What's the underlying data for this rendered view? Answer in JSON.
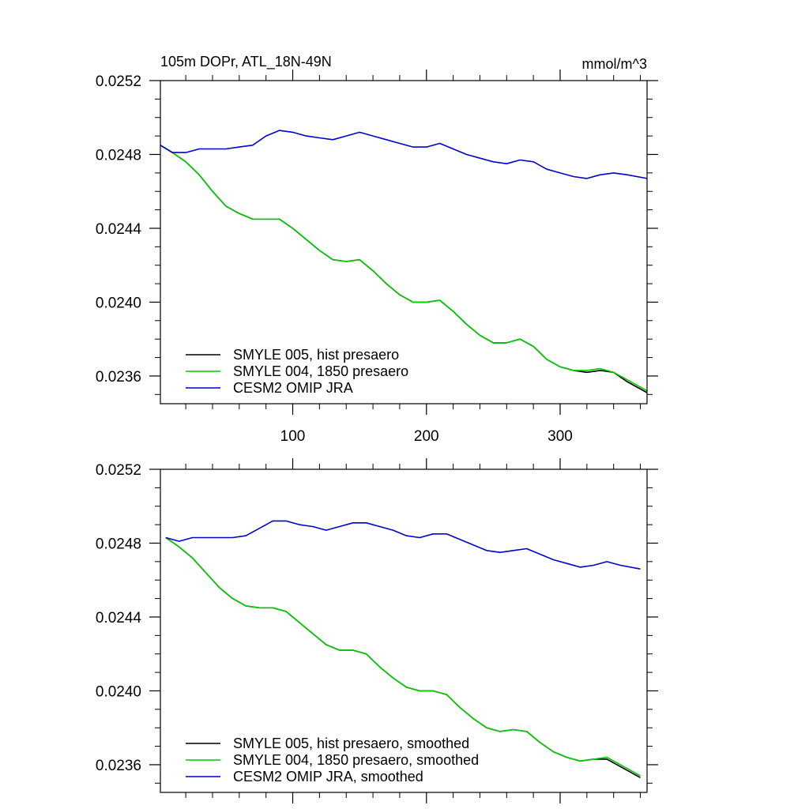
{
  "chart_data": [
    {
      "type": "line",
      "title": "105m DOPr, ATL_18N-49N",
      "units": "mmol/m^3",
      "xlim": [
        1,
        365
      ],
      "ylim": [
        0.02345,
        0.0252
      ],
      "x_ticks": [
        100,
        200,
        300
      ],
      "x_tick_labels": [
        "100",
        "200",
        "300"
      ],
      "y_ticks": [
        0.0236,
        0.024,
        0.0244,
        0.0248,
        0.0252
      ],
      "y_tick_labels": [
        "0.0236",
        "0.0240",
        "0.0244",
        "0.0248",
        "0.0252"
      ],
      "legend_position": "bottom-left",
      "series": [
        {
          "name": "SMYLE 005, hist presaero",
          "color": "#000000",
          "x": [
            1,
            10,
            20,
            30,
            40,
            50,
            60,
            70,
            80,
            90,
            100,
            110,
            120,
            130,
            140,
            150,
            160,
            170,
            180,
            190,
            200,
            210,
            220,
            230,
            240,
            250,
            260,
            270,
            280,
            290,
            300,
            310,
            320,
            330,
            340,
            350,
            365
          ],
          "y": [
            0.02485,
            0.02481,
            0.02476,
            0.02469,
            0.0246,
            0.02452,
            0.02448,
            0.02445,
            0.02445,
            0.02445,
            0.0244,
            0.02434,
            0.02428,
            0.02423,
            0.02422,
            0.02423,
            0.02417,
            0.0241,
            0.02404,
            0.024,
            0.024,
            0.02401,
            0.02395,
            0.02388,
            0.02382,
            0.02378,
            0.02378,
            0.0238,
            0.02376,
            0.02369,
            0.02365,
            0.02363,
            0.02362,
            0.02363,
            0.02362,
            0.02357,
            0.02351
          ]
        },
        {
          "name": "SMYLE 004, 1850 presaero",
          "color": "#00cc00",
          "x": [
            1,
            10,
            20,
            30,
            40,
            50,
            60,
            70,
            80,
            90,
            100,
            110,
            120,
            130,
            140,
            150,
            160,
            170,
            180,
            190,
            200,
            210,
            220,
            230,
            240,
            250,
            260,
            270,
            280,
            290,
            300,
            310,
            320,
            330,
            340,
            350,
            365
          ],
          "y": [
            0.02485,
            0.02481,
            0.02476,
            0.02469,
            0.0246,
            0.02452,
            0.02448,
            0.02445,
            0.02445,
            0.02445,
            0.0244,
            0.02434,
            0.02428,
            0.02423,
            0.02422,
            0.02423,
            0.02417,
            0.0241,
            0.02404,
            0.024,
            0.024,
            0.02401,
            0.02395,
            0.02388,
            0.02382,
            0.02378,
            0.02378,
            0.0238,
            0.02376,
            0.02369,
            0.02365,
            0.02363,
            0.02363,
            0.02364,
            0.02362,
            0.02358,
            0.02352
          ]
        },
        {
          "name": "CESM2 OMIP JRA",
          "color": "#0000cc",
          "x": [
            1,
            10,
            20,
            30,
            40,
            50,
            60,
            70,
            80,
            90,
            100,
            110,
            120,
            130,
            140,
            150,
            160,
            170,
            180,
            190,
            200,
            210,
            220,
            230,
            240,
            250,
            260,
            270,
            280,
            290,
            300,
            310,
            320,
            330,
            340,
            350,
            365
          ],
          "y": [
            0.02485,
            0.02481,
            0.02481,
            0.02483,
            0.02483,
            0.02483,
            0.02484,
            0.02485,
            0.0249,
            0.02493,
            0.02492,
            0.0249,
            0.02489,
            0.02488,
            0.0249,
            0.02492,
            0.0249,
            0.02488,
            0.02486,
            0.02484,
            0.02484,
            0.02486,
            0.02483,
            0.0248,
            0.02478,
            0.02476,
            0.02475,
            0.02477,
            0.02476,
            0.02472,
            0.0247,
            0.02468,
            0.02467,
            0.02469,
            0.0247,
            0.02469,
            0.02467
          ]
        }
      ]
    },
    {
      "type": "line",
      "xlim": [
        1,
        365
      ],
      "ylim": [
        0.02345,
        0.0252
      ],
      "x_ticks": [
        100,
        200,
        300
      ],
      "y_ticks": [
        0.0236,
        0.024,
        0.0244,
        0.0248,
        0.0252
      ],
      "y_tick_labels": [
        "0.0236",
        "0.0240",
        "0.0244",
        "0.0248",
        "0.0252"
      ],
      "legend_position": "bottom-left",
      "series": [
        {
          "name": "SMYLE 005, hist presaero, smoothed",
          "color": "#000000",
          "x": [
            5,
            15,
            25,
            35,
            45,
            55,
            65,
            75,
            85,
            95,
            105,
            115,
            125,
            135,
            145,
            155,
            165,
            175,
            185,
            195,
            205,
            215,
            225,
            235,
            245,
            255,
            265,
            275,
            285,
            295,
            305,
            315,
            325,
            335,
            345,
            360
          ],
          "y": [
            0.02483,
            0.02478,
            0.02472,
            0.02464,
            0.02456,
            0.0245,
            0.02446,
            0.02445,
            0.02445,
            0.02443,
            0.02437,
            0.02431,
            0.02425,
            0.02422,
            0.02422,
            0.0242,
            0.02413,
            0.02407,
            0.02402,
            0.024,
            0.024,
            0.02398,
            0.02391,
            0.02385,
            0.0238,
            0.02378,
            0.02379,
            0.02378,
            0.02372,
            0.02367,
            0.02364,
            0.02362,
            0.02363,
            0.02363,
            0.02359,
            0.02353
          ]
        },
        {
          "name": "SMYLE 004, 1850 presaero, smoothed",
          "color": "#00cc00",
          "x": [
            5,
            15,
            25,
            35,
            45,
            55,
            65,
            75,
            85,
            95,
            105,
            115,
            125,
            135,
            145,
            155,
            165,
            175,
            185,
            195,
            205,
            215,
            225,
            235,
            245,
            255,
            265,
            275,
            285,
            295,
            305,
            315,
            325,
            335,
            345,
            360
          ],
          "y": [
            0.02483,
            0.02478,
            0.02472,
            0.02464,
            0.02456,
            0.0245,
            0.02446,
            0.02445,
            0.02445,
            0.02443,
            0.02437,
            0.02431,
            0.02425,
            0.02422,
            0.02422,
            0.0242,
            0.02413,
            0.02407,
            0.02402,
            0.024,
            0.024,
            0.02398,
            0.02391,
            0.02385,
            0.0238,
            0.02378,
            0.02379,
            0.02378,
            0.02372,
            0.02367,
            0.02364,
            0.02362,
            0.02363,
            0.02364,
            0.0236,
            0.02354
          ]
        },
        {
          "name": "CESM2 OMIP JRA, smoothed",
          "color": "#0000cc",
          "x": [
            5,
            15,
            25,
            35,
            45,
            55,
            65,
            75,
            85,
            95,
            105,
            115,
            125,
            135,
            145,
            155,
            165,
            175,
            185,
            195,
            205,
            215,
            225,
            235,
            245,
            255,
            265,
            275,
            285,
            295,
            305,
            315,
            325,
            335,
            345,
            360
          ],
          "y": [
            0.02483,
            0.02481,
            0.02483,
            0.02483,
            0.02483,
            0.02483,
            0.02484,
            0.02488,
            0.02492,
            0.02492,
            0.0249,
            0.02489,
            0.02487,
            0.02489,
            0.02491,
            0.02491,
            0.02489,
            0.02487,
            0.02484,
            0.02483,
            0.02485,
            0.02485,
            0.02482,
            0.02479,
            0.02476,
            0.02475,
            0.02476,
            0.02477,
            0.02474,
            0.02471,
            0.02469,
            0.02467,
            0.02468,
            0.0247,
            0.02468,
            0.02466
          ]
        }
      ]
    }
  ]
}
